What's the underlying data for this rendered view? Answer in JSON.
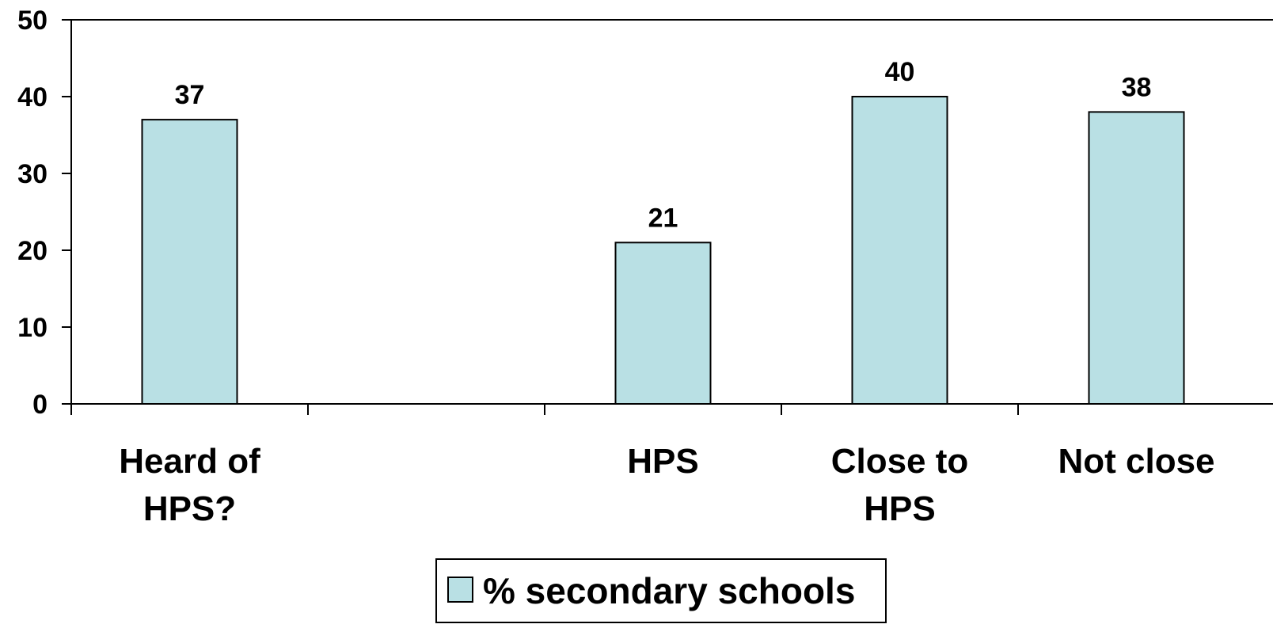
{
  "chart_data": {
    "type": "bar",
    "categories": [
      [
        "Heard of",
        "HPS?"
      ],
      [
        ""
      ],
      [
        "HPS"
      ],
      [
        "Close to",
        "HPS"
      ],
      [
        "Not close"
      ]
    ],
    "series": [
      {
        "name": "% secondary schools",
        "values": [
          37,
          null,
          21,
          40,
          38
        ]
      }
    ],
    "data_labels": [
      "37",
      "",
      "21",
      "40",
      "38"
    ],
    "ylim": [
      0,
      50
    ],
    "yticks": [
      0,
      10,
      20,
      30,
      40,
      50
    ],
    "grid": false,
    "legend_position": "bottom-center",
    "colors": {
      "bar_fill": "#b9e0e4",
      "bar_stroke": "#000000",
      "axis": "#000000"
    }
  }
}
